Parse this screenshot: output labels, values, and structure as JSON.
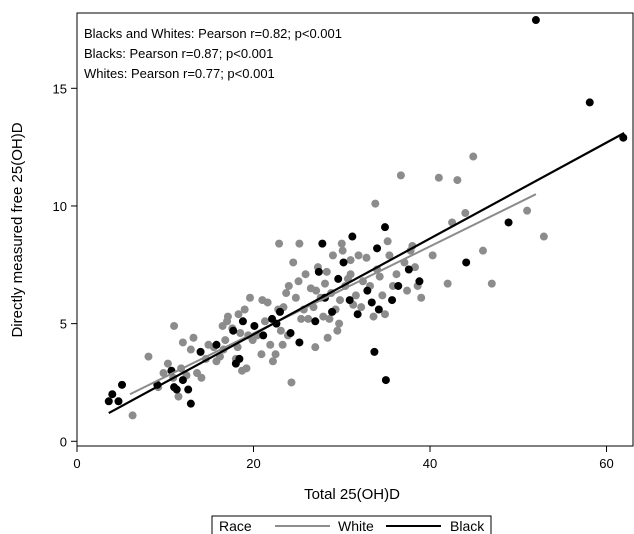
{
  "chart_data": {
    "type": "scatter",
    "title": "",
    "xlabel": "Total 25(OH)D",
    "ylabel": "Directly measured free 25(OH)D",
    "xlim": [
      0,
      63
    ],
    "ylim": [
      -0.2,
      18.2
    ],
    "x_ticks": [
      0,
      20,
      40,
      60
    ],
    "y_ticks": [
      0,
      5,
      10,
      15
    ],
    "grid": false,
    "legend_placement": "bottom",
    "legend_title": "Race",
    "annotations": [
      "Blacks and Whites: Pearson r=0.82; p<0.001",
      "Blacks: Pearson r=0.87; p<0.001",
      "Whites: Pearson r=0.77; p<0.001"
    ],
    "series": [
      {
        "name": "White",
        "color": "#8c8c8c",
        "points": [
          [
            6.3,
            1.1
          ],
          [
            8.1,
            3.6
          ],
          [
            9.2,
            2.3
          ],
          [
            9.8,
            2.9
          ],
          [
            10.3,
            3.3
          ],
          [
            10.9,
            2.7
          ],
          [
            11.0,
            4.9
          ],
          [
            11.5,
            1.9
          ],
          [
            11.8,
            3.1
          ],
          [
            12.4,
            2.8
          ],
          [
            12.9,
            3.9
          ],
          [
            13.6,
            2.9
          ],
          [
            14.1,
            2.7
          ],
          [
            14.6,
            3.5
          ],
          [
            14.9,
            4.1
          ],
          [
            15.5,
            4.0
          ],
          [
            16.2,
            3.6
          ],
          [
            16.6,
            3.9
          ],
          [
            16.8,
            4.3
          ],
          [
            17.1,
            5.3
          ],
          [
            17.6,
            4.8
          ],
          [
            18.0,
            3.5
          ],
          [
            18.2,
            4.0
          ],
          [
            18.5,
            4.6
          ],
          [
            18.7,
            3.0
          ],
          [
            19.0,
            5.6
          ],
          [
            19.2,
            3.1
          ],
          [
            19.6,
            6.1
          ],
          [
            19.9,
            4.3
          ],
          [
            20.4,
            4.5
          ],
          [
            20.9,
            3.7
          ],
          [
            21.3,
            5.1
          ],
          [
            21.6,
            5.9
          ],
          [
            21.9,
            4.1
          ],
          [
            22.2,
            3.4
          ],
          [
            22.5,
            3.7
          ],
          [
            22.8,
            5.6
          ],
          [
            23.1,
            4.7
          ],
          [
            23.3,
            4.1
          ],
          [
            23.4,
            5.7
          ],
          [
            23.7,
            6.3
          ],
          [
            23.9,
            4.5
          ],
          [
            24.3,
            2.5
          ],
          [
            24.5,
            7.6
          ],
          [
            24.8,
            6.1
          ],
          [
            25.1,
            6.8
          ],
          [
            25.4,
            5.2
          ],
          [
            25.7,
            5.6
          ],
          [
            25.9,
            7.1
          ],
          [
            26.2,
            5.2
          ],
          [
            26.5,
            6.5
          ],
          [
            26.8,
            5.7
          ],
          [
            27.1,
            6.4
          ],
          [
            27.3,
            7.4
          ],
          [
            27.6,
            6.1
          ],
          [
            27.9,
            5.3
          ],
          [
            28.1,
            6.7
          ],
          [
            28.3,
            7.2
          ],
          [
            28.6,
            5.2
          ],
          [
            28.8,
            6.3
          ],
          [
            29.0,
            7.9
          ],
          [
            29.3,
            5.6
          ],
          [
            29.5,
            4.7
          ],
          [
            29.8,
            6.0
          ],
          [
            30.1,
            8.1
          ],
          [
            30.4,
            6.6
          ],
          [
            30.7,
            6.9
          ],
          [
            31.0,
            7.7
          ],
          [
            31.3,
            5.8
          ],
          [
            31.6,
            6.2
          ],
          [
            31.9,
            7.9
          ],
          [
            32.2,
            5.7
          ],
          [
            32.4,
            6.8
          ],
          [
            32.8,
            7.8
          ],
          [
            33.2,
            6.6
          ],
          [
            33.6,
            5.3
          ],
          [
            34.0,
            7.3
          ],
          [
            34.3,
            7.0
          ],
          [
            34.6,
            6.2
          ],
          [
            34.9,
            5.4
          ],
          [
            35.4,
            7.9
          ],
          [
            35.8,
            6.6
          ],
          [
            36.2,
            7.1
          ],
          [
            36.7,
            11.3
          ],
          [
            37.1,
            7.6
          ],
          [
            37.4,
            6.4
          ],
          [
            37.8,
            8.1
          ],
          [
            38.3,
            7.4
          ],
          [
            38.6,
            6.6
          ],
          [
            39.0,
            6.1
          ],
          [
            40.3,
            7.9
          ],
          [
            41.0,
            11.2
          ],
          [
            42.0,
            6.7
          ],
          [
            42.5,
            9.3
          ],
          [
            43.1,
            11.1
          ],
          [
            44.0,
            9.7
          ],
          [
            44.9,
            12.1
          ],
          [
            46.0,
            8.1
          ],
          [
            47.0,
            6.7
          ],
          [
            51.0,
            9.8
          ],
          [
            52.9,
            8.7
          ],
          [
            22.9,
            8.4
          ],
          [
            25.2,
            8.4
          ],
          [
            24.0,
            6.6
          ],
          [
            21.0,
            6.0
          ],
          [
            19.4,
            4.5
          ],
          [
            18.3,
            5.4
          ],
          [
            17.0,
            5.1
          ],
          [
            16.5,
            4.9
          ],
          [
            15.8,
            3.4
          ],
          [
            13.2,
            4.4
          ],
          [
            12.0,
            4.2
          ],
          [
            27.0,
            4.0
          ],
          [
            28.4,
            4.4
          ],
          [
            29.7,
            5.0
          ],
          [
            30.0,
            8.4
          ],
          [
            31.0,
            7.1
          ],
          [
            33.8,
            10.1
          ],
          [
            35.2,
            8.5
          ],
          [
            38.0,
            8.3
          ]
        ]
      },
      {
        "name": "Black",
        "color": "#000000",
        "points": [
          [
            3.6,
            1.7
          ],
          [
            4.0,
            2.0
          ],
          [
            4.7,
            1.7
          ],
          [
            5.1,
            2.4
          ],
          [
            9.1,
            2.4
          ],
          [
            10.7,
            3.0
          ],
          [
            11.0,
            2.3
          ],
          [
            11.3,
            2.2
          ],
          [
            12.0,
            2.6
          ],
          [
            12.6,
            2.2
          ],
          [
            12.9,
            1.6
          ],
          [
            14.0,
            3.8
          ],
          [
            15.8,
            4.1
          ],
          [
            17.7,
            4.7
          ],
          [
            18.0,
            3.3
          ],
          [
            18.4,
            3.5
          ],
          [
            18.8,
            5.1
          ],
          [
            20.1,
            4.9
          ],
          [
            21.1,
            4.5
          ],
          [
            22.1,
            5.2
          ],
          [
            23.0,
            5.5
          ],
          [
            24.2,
            4.6
          ],
          [
            25.2,
            4.2
          ],
          [
            27.0,
            5.1
          ],
          [
            27.4,
            7.2
          ],
          [
            27.8,
            8.4
          ],
          [
            28.1,
            6.1
          ],
          [
            28.9,
            5.5
          ],
          [
            29.6,
            6.9
          ],
          [
            30.2,
            7.6
          ],
          [
            30.9,
            6.0
          ],
          [
            31.2,
            8.7
          ],
          [
            31.8,
            5.4
          ],
          [
            32.9,
            6.4
          ],
          [
            33.4,
            5.9
          ],
          [
            34.0,
            8.2
          ],
          [
            34.2,
            5.6
          ],
          [
            34.9,
            9.1
          ],
          [
            35.0,
            2.6
          ],
          [
            35.7,
            6.0
          ],
          [
            36.4,
            6.6
          ],
          [
            37.6,
            7.3
          ],
          [
            38.8,
            6.8
          ],
          [
            44.1,
            7.6
          ],
          [
            48.9,
            9.3
          ],
          [
            52.0,
            17.9
          ],
          [
            58.1,
            14.4
          ],
          [
            61.9,
            12.9
          ],
          [
            33.7,
            3.8
          ],
          [
            22.6,
            5.0
          ]
        ]
      }
    ],
    "fit_lines": [
      {
        "name": "White",
        "color": "#8c8c8c",
        "x": [
          6.0,
          52.0
        ],
        "y": [
          2.0,
          10.5
        ]
      },
      {
        "name": "Black",
        "color": "#000000",
        "x": [
          3.6,
          62.0
        ],
        "y": [
          1.2,
          13.1
        ]
      }
    ]
  }
}
